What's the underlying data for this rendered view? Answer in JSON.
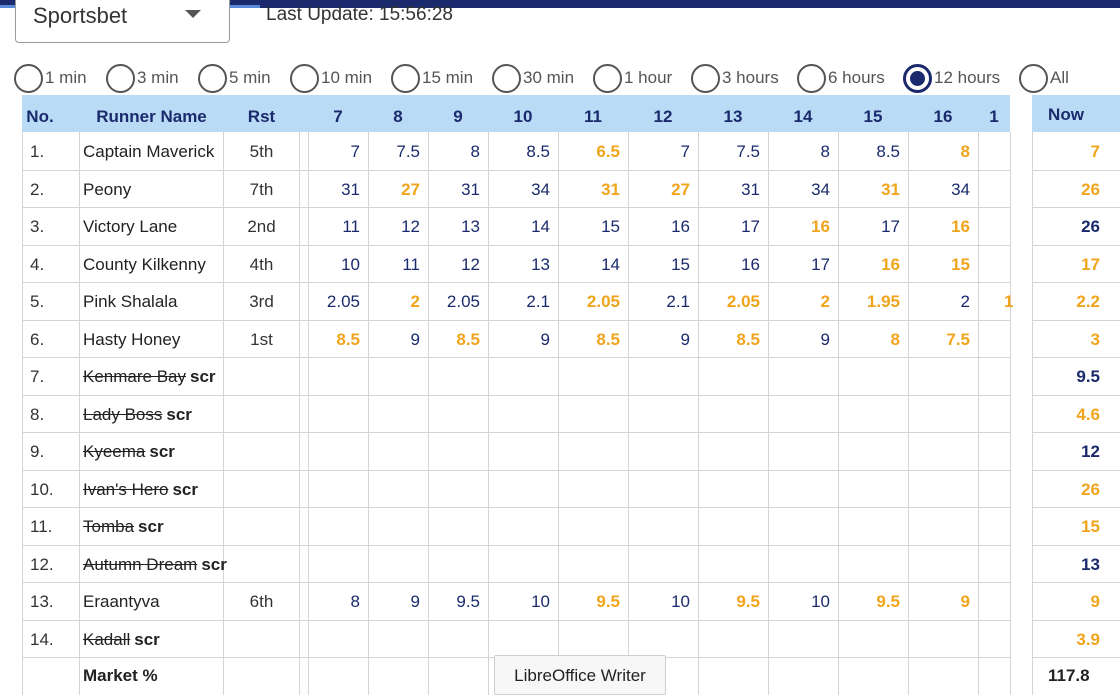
{
  "bookmaker": {
    "selected": "Sportsbet"
  },
  "last_update": "Last Update: 15:56:28",
  "intervals": [
    {
      "label": "1 min",
      "selected": false
    },
    {
      "label": "3 min",
      "selected": false
    },
    {
      "label": "5 min",
      "selected": false
    },
    {
      "label": "10 min",
      "selected": false
    },
    {
      "label": "15 min",
      "selected": false
    },
    {
      "label": "30 min",
      "selected": false
    },
    {
      "label": "1 hour",
      "selected": false
    },
    {
      "label": "3 hours",
      "selected": false
    },
    {
      "label": "6 hours",
      "selected": false
    },
    {
      "label": "12 hours",
      "selected": true
    },
    {
      "label": "All",
      "selected": false
    }
  ],
  "columns": {
    "no": "No.",
    "runner": "Runner Name",
    "rst": "Rst",
    "times": [
      "7",
      "8",
      "9",
      "10",
      "11",
      "12",
      "13",
      "14",
      "15",
      "16",
      "1"
    ],
    "now": "Now"
  },
  "runners": [
    {
      "no": "1.",
      "name": "Captain Maverick",
      "scr": false,
      "rst": "5th",
      "odds": [
        "7",
        "7.5",
        "8",
        "8.5",
        "6.5",
        "7",
        "7.5",
        "8",
        "8.5",
        "8",
        ""
      ],
      "hi": [
        false,
        false,
        false,
        false,
        true,
        false,
        false,
        false,
        false,
        true,
        false
      ],
      "now": "7",
      "now_hi": true
    },
    {
      "no": "2.",
      "name": "Peony",
      "scr": false,
      "rst": "7th",
      "odds": [
        "31",
        "27",
        "31",
        "34",
        "31",
        "27",
        "31",
        "34",
        "31",
        "34",
        ""
      ],
      "hi": [
        false,
        true,
        false,
        false,
        true,
        true,
        false,
        false,
        true,
        false,
        false
      ],
      "now": "26",
      "now_hi": true
    },
    {
      "no": "3.",
      "name": "Victory Lane",
      "scr": false,
      "rst": "2nd",
      "odds": [
        "11",
        "12",
        "13",
        "14",
        "15",
        "16",
        "17",
        "16",
        "17",
        "16",
        ""
      ],
      "hi": [
        false,
        false,
        false,
        false,
        false,
        false,
        false,
        true,
        false,
        true,
        false
      ],
      "now": "26",
      "now_hi": false
    },
    {
      "no": "4.",
      "name": "County Kilkenny",
      "scr": false,
      "rst": "4th",
      "odds": [
        "10",
        "11",
        "12",
        "13",
        "14",
        "15",
        "16",
        "17",
        "16",
        "15",
        ""
      ],
      "hi": [
        false,
        false,
        false,
        false,
        false,
        false,
        false,
        false,
        true,
        true,
        false
      ],
      "now": "17",
      "now_hi": true
    },
    {
      "no": "5.",
      "name": "Pink Shalala",
      "scr": false,
      "rst": "3rd",
      "odds": [
        "2.05",
        "2",
        "2.05",
        "2.1",
        "2.05",
        "2.1",
        "2.05",
        "2",
        "1.95",
        "2",
        "1"
      ],
      "hi": [
        false,
        true,
        false,
        false,
        true,
        false,
        true,
        true,
        true,
        false,
        true
      ],
      "now": "2.2",
      "now_hi": true
    },
    {
      "no": "6.",
      "name": "Hasty Honey",
      "scr": false,
      "rst": "1st",
      "odds": [
        "8.5",
        "9",
        "8.5",
        "9",
        "8.5",
        "9",
        "8.5",
        "9",
        "8",
        "7.5",
        ""
      ],
      "hi": [
        true,
        false,
        true,
        false,
        true,
        false,
        true,
        false,
        true,
        true,
        false
      ],
      "now": "3",
      "now_hi": true
    },
    {
      "no": "7.",
      "name": "Kenmare Bay",
      "scr": true,
      "scr_label": "scr",
      "rst": "",
      "odds": [],
      "hi": [],
      "now": "9.5",
      "now_hi": false
    },
    {
      "no": "8.",
      "name": "Lady Boss",
      "scr": true,
      "scr_label": "scr",
      "rst": "",
      "odds": [],
      "hi": [],
      "now": "4.6",
      "now_hi": true
    },
    {
      "no": "9.",
      "name": "Kyeema",
      "scr": true,
      "scr_label": "scr",
      "rst": "",
      "odds": [],
      "hi": [],
      "now": "12",
      "now_hi": false
    },
    {
      "no": "10.",
      "name": "Ivan's Hero",
      "scr": true,
      "scr_label": "scr",
      "rst": "",
      "odds": [],
      "hi": [],
      "now": "26",
      "now_hi": true
    },
    {
      "no": "11.",
      "name": "Tomba",
      "scr": true,
      "scr_label": "scr",
      "rst": "",
      "odds": [],
      "hi": [],
      "now": "15",
      "now_hi": true
    },
    {
      "no": "12.",
      "name": "Autumn Dream",
      "scr": true,
      "scr_label": "scr",
      "rst": "",
      "odds": [],
      "hi": [],
      "now": "13",
      "now_hi": false
    },
    {
      "no": "13.",
      "name": "Eraantyva",
      "scr": false,
      "rst": "6th",
      "odds": [
        "8",
        "9",
        "9.5",
        "10",
        "9.5",
        "10",
        "9.5",
        "10",
        "9.5",
        "9",
        ""
      ],
      "hi": [
        false,
        false,
        false,
        false,
        true,
        false,
        true,
        false,
        true,
        true,
        false
      ],
      "now": "9",
      "now_hi": true
    },
    {
      "no": "14.",
      "name": "Kadall",
      "scr": true,
      "scr_label": "scr",
      "rst": "",
      "odds": [],
      "hi": [],
      "now": "3.9",
      "now_hi": true
    }
  ],
  "market": {
    "label": "Market %",
    "now": "117.8"
  },
  "tooltip": "LibreOffice Writer",
  "colors": {
    "navy": "#1a2a6c",
    "highlight": "#f0a51c",
    "header_bg": "#b9dbf5"
  }
}
